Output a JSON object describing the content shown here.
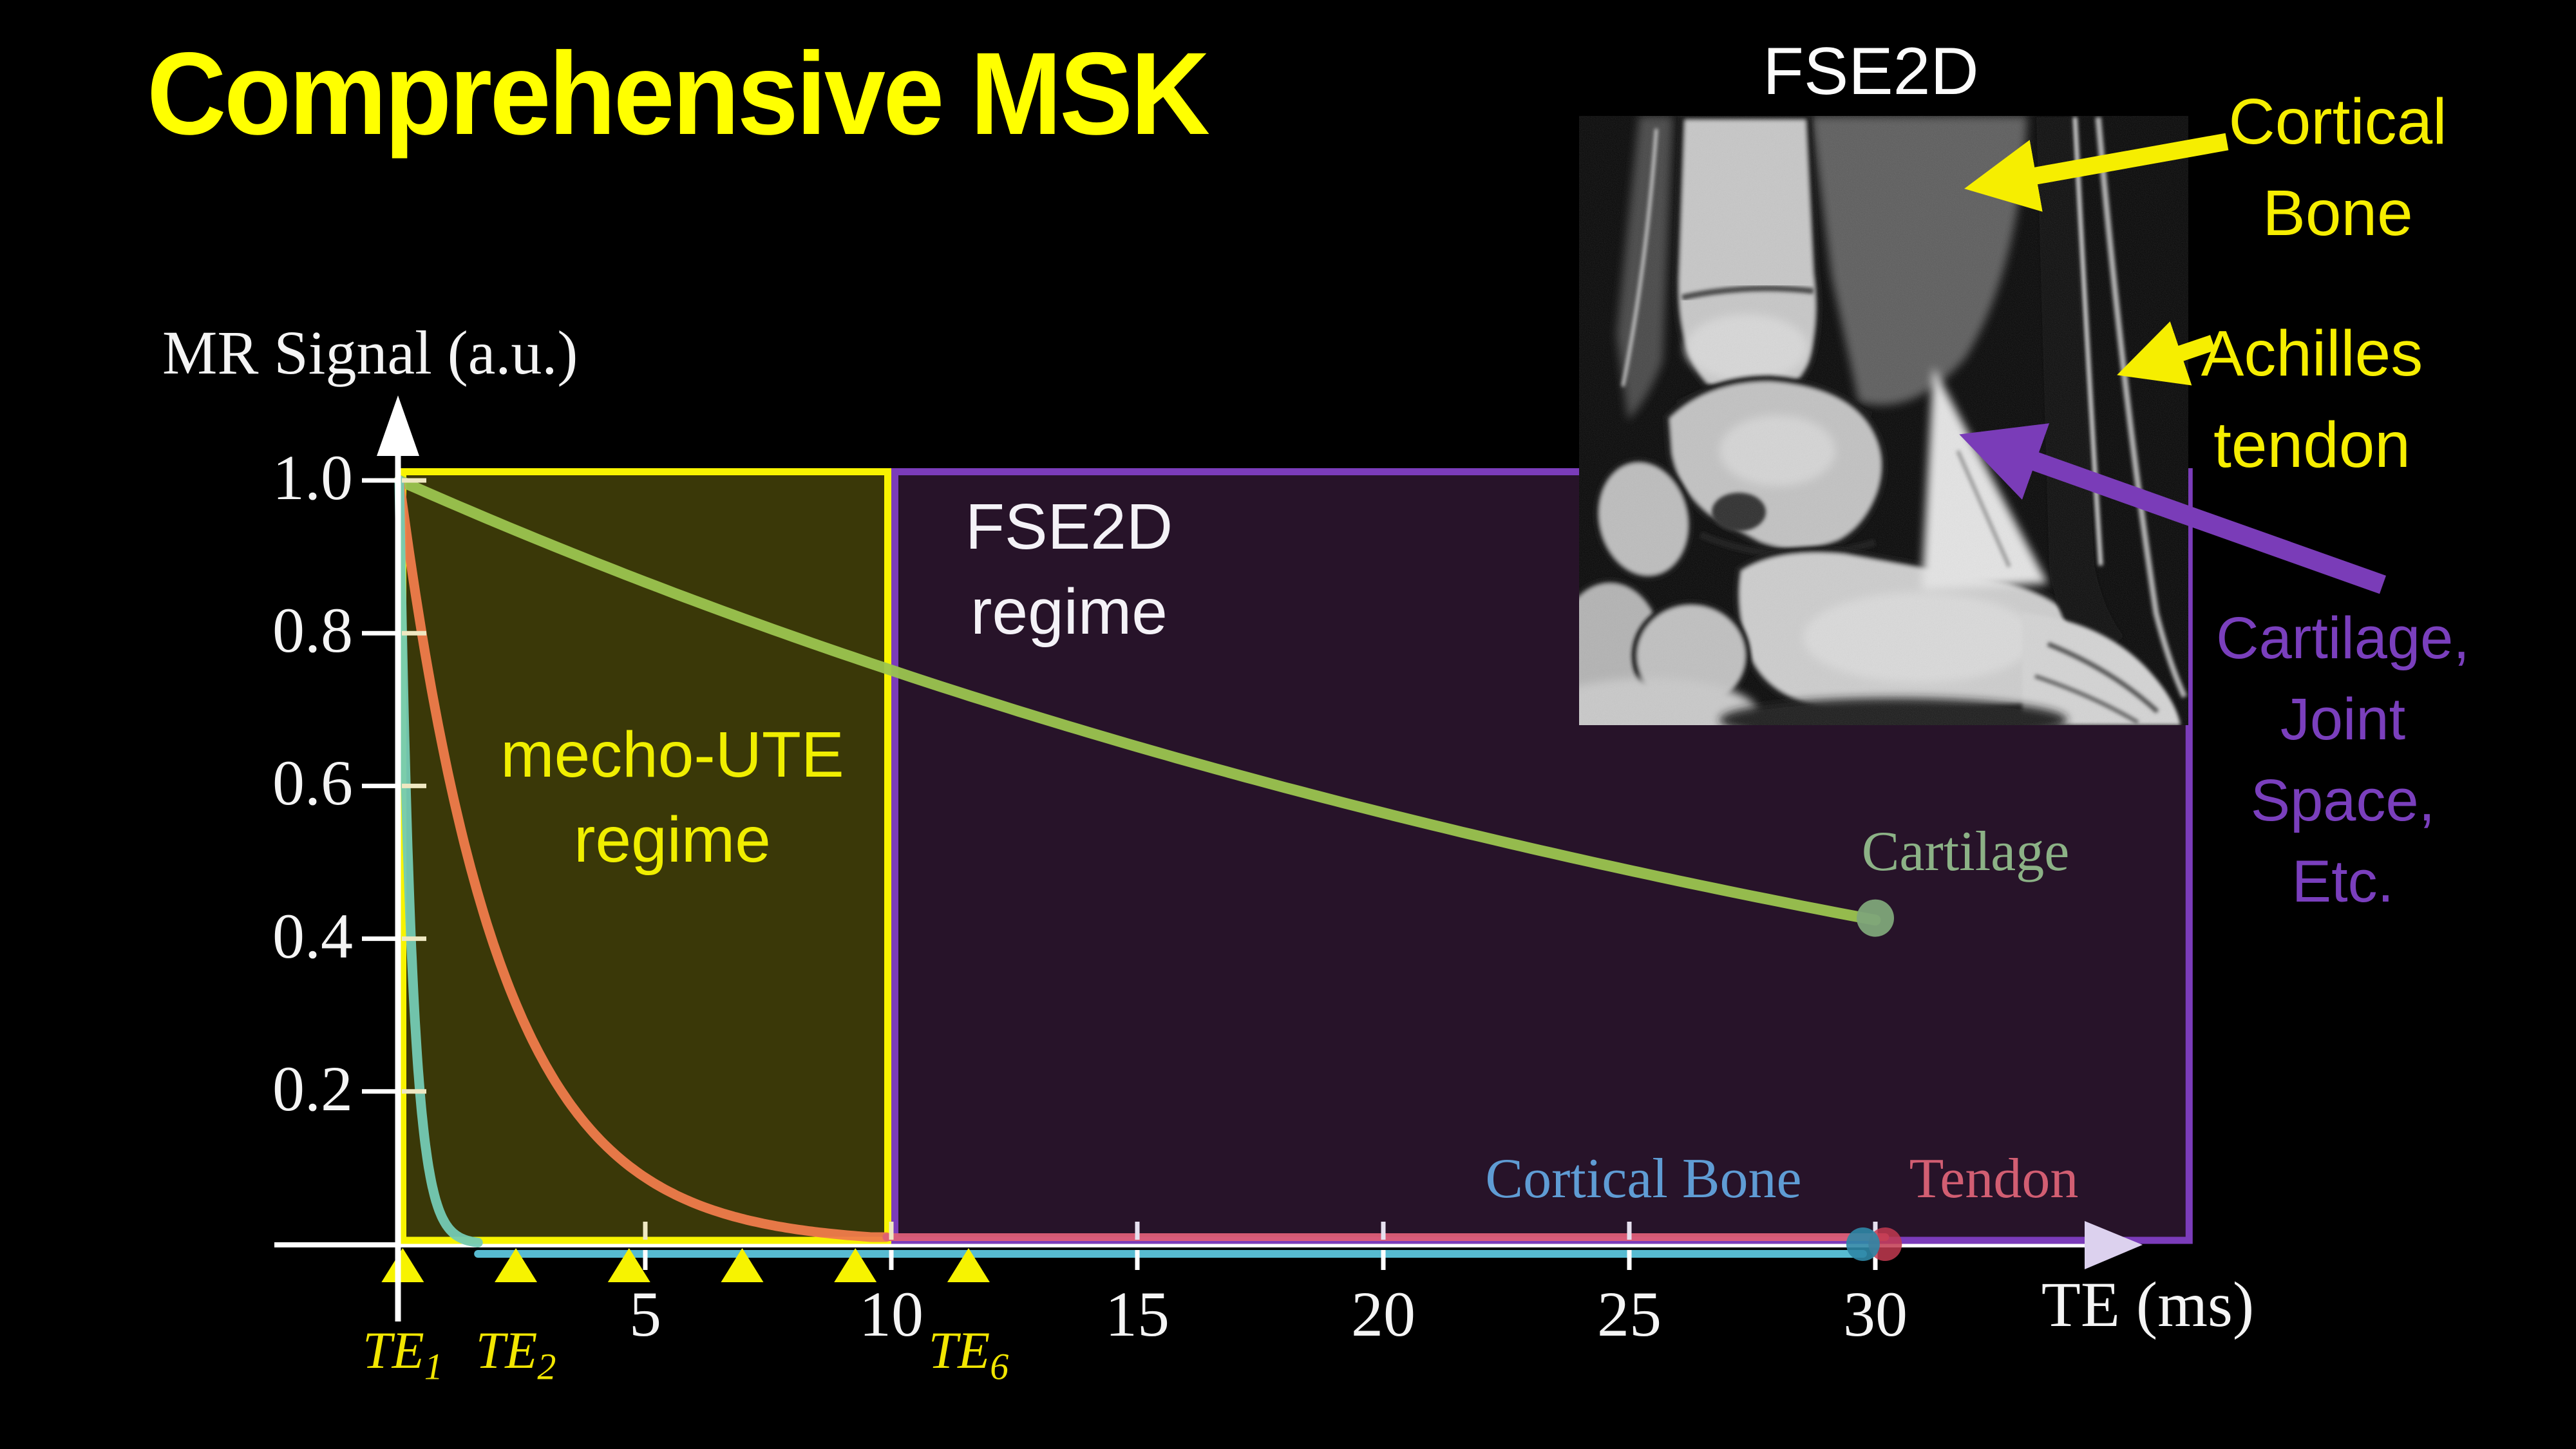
{
  "title": "Comprehensive MSK",
  "mri_panel": {
    "top_label": "FSE2D"
  },
  "annotations": {
    "cortical_bone": {
      "lines": [
        "Cortical",
        "Bone"
      ],
      "color": "#f6ee00"
    },
    "achilles_tendon": {
      "lines": [
        "Achilles",
        "tendon"
      ],
      "color": "#f6ee00"
    },
    "cartilage_joint": {
      "lines": [
        "Cartilage,",
        "Joint",
        "Space,",
        "Etc."
      ],
      "color": "#7a3fbd"
    }
  },
  "chart_data": {
    "type": "line",
    "title": "",
    "xlabel": "TE (ms)",
    "ylabel": "MR Signal (a.u.)",
    "xlim_ms": [
      0,
      36.5
    ],
    "ylim": [
      0,
      1.0
    ],
    "grid": false,
    "x_ticks": [
      "5",
      "10",
      "15",
      "20",
      "25",
      "30"
    ],
    "x_tick_values_ms": [
      5,
      10,
      15,
      20,
      25,
      30
    ],
    "y_ticks": [
      "0.2",
      "0.4",
      "0.6",
      "0.8",
      "1.0"
    ],
    "y_tick_values": [
      0.2,
      0.4,
      0.6,
      0.8,
      1.0
    ],
    "regions": [
      {
        "name_lines": [
          "mecho-UTE",
          "regime"
        ],
        "te_range_ms": [
          0,
          10
        ],
        "fill": "#3a3808",
        "border": "#f7f300",
        "label_color": "#f0ee00"
      },
      {
        "name_lines": [
          "FSE2D",
          "regime"
        ],
        "te_range_ms": [
          10,
          36.45
        ],
        "fill": "#271329",
        "border": "#7b3cba",
        "label_color": "#f4f2f7"
      }
    ],
    "series": [
      {
        "name": "Cartilage",
        "model": "exponential_decay",
        "amplitude": 1.0,
        "t2_ms": 35,
        "label_color": "#8cb286",
        "segments": [
          {
            "te": [
              0,
              30
            ],
            "color": "#9bc44f",
            "width": 17
          }
        ],
        "end_dot": {
          "te_ms": 30,
          "signal": 0.427,
          "color": "#7ea579",
          "radius": 29,
          "opacity": 0.95
        }
      },
      {
        "name": "Tendon",
        "model": "exponential_decay",
        "amplitude": 1.0,
        "t2_ms": 2.05,
        "label_color": "#d25e72",
        "floor_y": 1921,
        "segments": [
          {
            "te": [
              0,
              9.9
            ],
            "color": "#ef7b4b",
            "width": 15
          },
          {
            "te": [
              9.9,
              30.2
            ],
            "color": "#dd5e77",
            "width": 12
          }
        ],
        "end_dot": {
          "te_ms": 30.2,
          "signal": 0,
          "color": "#c23a50",
          "radius": 26,
          "opacity": 0.85
        }
      },
      {
        "name": "Cortical Bone",
        "model": "exponential_decay",
        "amplitude": 1.0,
        "t2_ms": 0.26,
        "label_color": "#5f9cd4",
        "floor_y": 1944,
        "segments": [
          {
            "te": [
              0,
              1.6
            ],
            "color": "#74cab4",
            "width": 15
          },
          {
            "te": [
              1.6,
              29.75
            ],
            "color": "#5cc5dc",
            "width": 12,
            "fixed_y": 1947
          }
        ],
        "end_dot": {
          "te_ms": 29.75,
          "signal": 0,
          "color": "#2f87a6",
          "radius": 26,
          "opacity": 0.9
        }
      }
    ],
    "te_markers": {
      "te_ms": [
        0.07,
        2.37,
        4.67,
        6.97,
        9.27,
        11.57
      ],
      "labels": [
        {
          "base": "TE",
          "sub": "1"
        },
        {
          "base": "TE",
          "sub": "2"
        },
        null,
        null,
        null,
        {
          "base": "TE",
          "sub": "6"
        }
      ],
      "color": "#f7f300"
    }
  }
}
